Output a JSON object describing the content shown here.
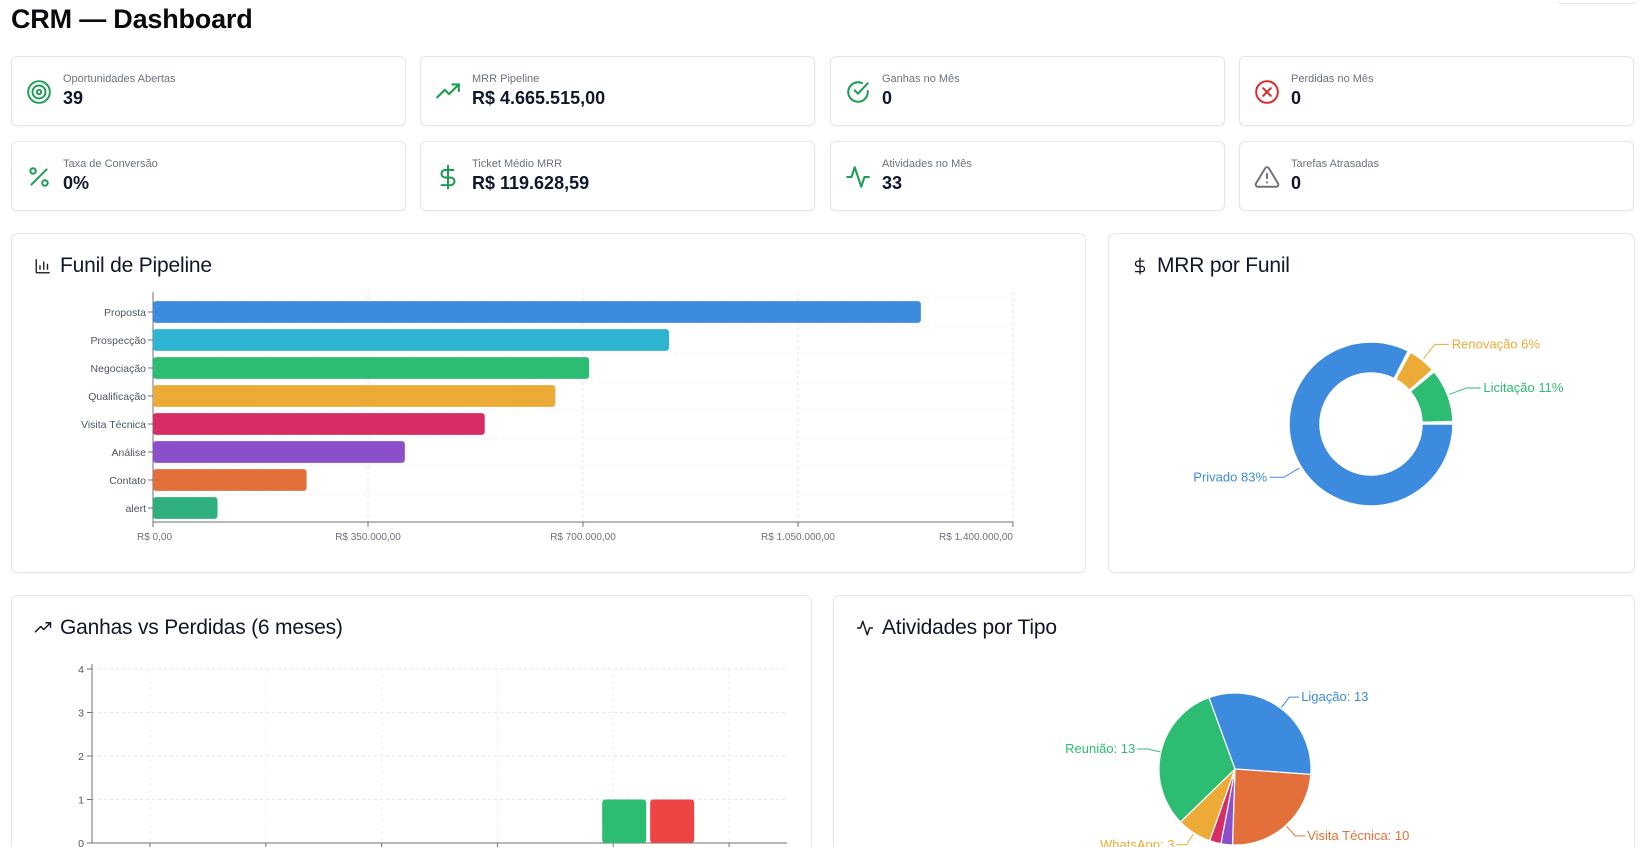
{
  "header": {
    "title": "CRM — Dashboard"
  },
  "stats": [
    {
      "label": "Oportunidades Abertas",
      "value": "39",
      "icon": "target-icon",
      "color": "#1f9d55"
    },
    {
      "label": "MRR Pipeline",
      "value": "R$ 4.665.515,00",
      "icon": "trending-up-icon",
      "color": "#1f9d55"
    },
    {
      "label": "Ganhas no Mês",
      "value": "0",
      "icon": "check-circle-icon",
      "color": "#1f9d55"
    },
    {
      "label": "Perdidas no Mês",
      "value": "0",
      "icon": "x-circle-icon",
      "color": "#dc2626"
    },
    {
      "label": "Taxa de Conversão",
      "value": "0%",
      "icon": "percent-icon",
      "color": "#1f9d55"
    },
    {
      "label": "Ticket Médio MRR",
      "value": "R$ 119.628,59",
      "icon": "dollar-icon",
      "color": "#1f9d55"
    },
    {
      "label": "Atividades no Mês",
      "value": "33",
      "icon": "activity-icon",
      "color": "#1f9d55"
    },
    {
      "label": "Tarefas Atrasadas",
      "value": "0",
      "icon": "alert-triangle-icon",
      "color": "#6b7280"
    }
  ],
  "panels": {
    "funnel": {
      "title": "Funil de Pipeline",
      "icon": "bar-chart-icon"
    },
    "mrr": {
      "title": "MRR por Funil",
      "icon": "dollar-icon"
    },
    "winloss": {
      "title": "Ganhas vs Perdidas (6 meses)",
      "icon": "trending-up-icon"
    },
    "activities": {
      "title": "Atividades por Tipo",
      "icon": "activity-icon"
    }
  },
  "chart_data": [
    {
      "type": "bar",
      "orientation": "horizontal",
      "categories": [
        "Proposta",
        "Prospecção",
        "Negociação",
        "Qualificação",
        "Visita Técnica",
        "Análise",
        "Contato",
        "alert"
      ],
      "values": [
        1250000,
        840000,
        710000,
        655000,
        540000,
        410000,
        250000,
        105000
      ],
      "colors": [
        "#3d8bdf",
        "#30b4d4",
        "#2dbd72",
        "#ebab36",
        "#d62d66",
        "#8c4fcc",
        "#e3703a",
        "#2fae7e"
      ],
      "xlim": [
        0,
        1400000
      ],
      "xticks": [
        "R$ 0,00",
        "R$ 350.000,00",
        "R$ 700.000,00",
        "R$ 1.050.000,00",
        "R$ 1.400.000,00"
      ],
      "grid": true
    },
    {
      "type": "pie",
      "donut": true,
      "slices": [
        {
          "name": "Privado",
          "label": "Privado 83%",
          "value": 83,
          "color": "#3d8bdf"
        },
        {
          "name": "Renovação",
          "label": "Renovação 6%",
          "value": 6,
          "color": "#ebab36"
        },
        {
          "name": "Licitação",
          "label": "Licitação 11%",
          "value": 11,
          "color": "#2dbd72"
        }
      ]
    },
    {
      "type": "bar",
      "ylim": [
        0,
        4
      ],
      "yticks": [
        "0",
        "1",
        "2",
        "3",
        "4"
      ],
      "series": [
        {
          "values": [
            0,
            0,
            0,
            0,
            1,
            0
          ],
          "color": "#2dbd72"
        },
        {
          "values": [
            0,
            0,
            0,
            0,
            1,
            0
          ],
          "color": "#ef4444"
        }
      ],
      "grid": true
    },
    {
      "type": "pie",
      "slices": [
        {
          "name": "Ligação",
          "label": "Ligação: 13",
          "value": 13,
          "color": "#3d8bdf"
        },
        {
          "name": "Visita Técnica",
          "label": "Visita Técnica: 10",
          "value": 10,
          "color": "#e3703a"
        },
        {
          "name": "",
          "label": "",
          "value": 1,
          "color": "#8c4fcc"
        },
        {
          "name": "",
          "label": "",
          "value": 1,
          "color": "#d62d66"
        },
        {
          "name": "WhatsApp",
          "label": "WhatsApp: 3",
          "value": 3,
          "color": "#ebab36"
        },
        {
          "name": "Reunião",
          "label": "Reunião: 13",
          "value": 13,
          "color": "#2dbd72"
        }
      ]
    }
  ]
}
